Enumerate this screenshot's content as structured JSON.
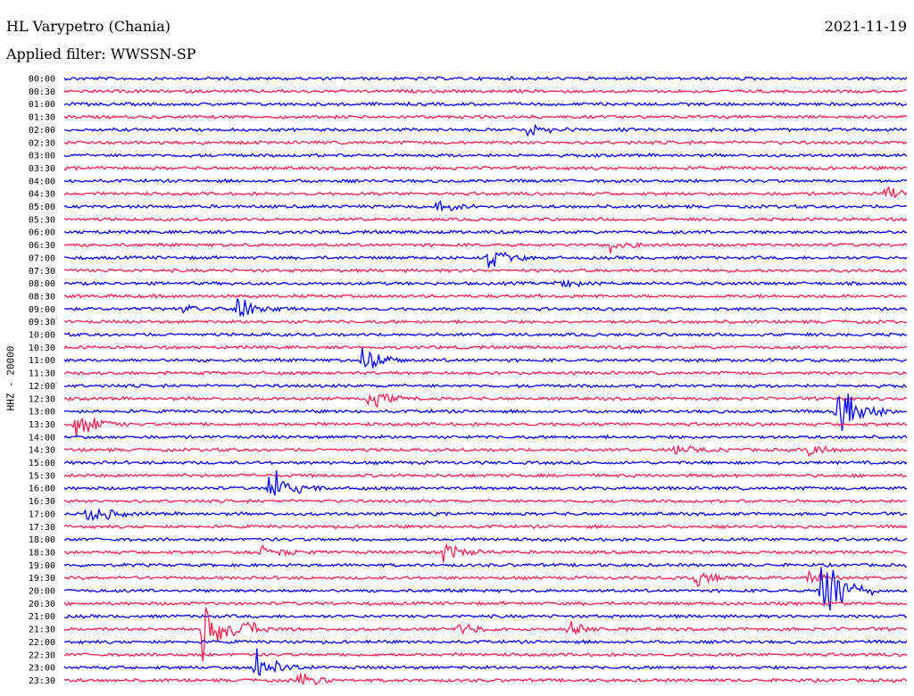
{
  "header": {
    "station": "HL Varypetro (Chania)",
    "date": "2021-11-19",
    "filter": "Applied filter: WWSSN-SP"
  },
  "colors": {
    "even": "#0000ff",
    "odd": "#ff1f4b"
  },
  "chart_data": {
    "type": "line",
    "title": "HL Varypetro (Chania)",
    "ylabel": "HHZ - 20000",
    "categories": [
      "00:00",
      "00:30",
      "01:00",
      "01:30",
      "02:00",
      "02:30",
      "03:00",
      "03:30",
      "04:00",
      "04:30",
      "05:00",
      "05:30",
      "06:00",
      "06:30",
      "07:00",
      "07:30",
      "08:00",
      "08:30",
      "09:00",
      "09:30",
      "10:00",
      "10:30",
      "11:00",
      "11:30",
      "12:00",
      "12:30",
      "13:00",
      "13:30",
      "14:00",
      "14:30",
      "15:00",
      "15:30",
      "16:00",
      "16:30",
      "17:00",
      "17:30",
      "18:00",
      "18:30",
      "19:00",
      "19:30",
      "20:00",
      "20:30",
      "21:00",
      "21:30",
      "22:00",
      "22:30",
      "23:00",
      "23:30"
    ],
    "events": [
      {
        "row": 4,
        "minute": 16.5,
        "amp": 0.45
      },
      {
        "row": 9,
        "minute": 29.2,
        "amp": 0.5
      },
      {
        "row": 10,
        "minute": 13.3,
        "amp": 0.4
      },
      {
        "row": 13,
        "minute": 19.4,
        "amp": 0.4
      },
      {
        "row": 14,
        "minute": 15.1,
        "amp": 0.7
      },
      {
        "row": 16,
        "minute": 17.5,
        "amp": 0.35
      },
      {
        "row": 18,
        "minute": 6.1,
        "amp": 1.0
      },
      {
        "row": 18,
        "minute": 4.2,
        "amp": 0.35
      },
      {
        "row": 22,
        "minute": 10.6,
        "amp": 1.2
      },
      {
        "row": 25,
        "minute": 10.8,
        "amp": 0.7
      },
      {
        "row": 26,
        "minute": 27.5,
        "amp": 3.0
      },
      {
        "row": 27,
        "minute": 0.4,
        "amp": 1.2
      },
      {
        "row": 29,
        "minute": 21.7,
        "amp": 0.35
      },
      {
        "row": 29,
        "minute": 26.5,
        "amp": 0.4
      },
      {
        "row": 32,
        "minute": 7.2,
        "amp": 1.8
      },
      {
        "row": 34,
        "minute": 0.8,
        "amp": 0.9
      },
      {
        "row": 37,
        "minute": 7.0,
        "amp": 0.5
      },
      {
        "row": 37,
        "minute": 13.5,
        "amp": 0.7
      },
      {
        "row": 39,
        "minute": 22.5,
        "amp": 0.45
      },
      {
        "row": 39,
        "minute": 26.5,
        "amp": 0.4
      },
      {
        "row": 40,
        "minute": 26.9,
        "amp": 4.2
      },
      {
        "row": 43,
        "minute": 4.9,
        "amp": 2.0
      },
      {
        "row": 43,
        "minute": 6.1,
        "amp": 0.7
      },
      {
        "row": 43,
        "minute": 14.0,
        "amp": 0.4
      },
      {
        "row": 43,
        "minute": 17.9,
        "amp": 0.5
      },
      {
        "row": 46,
        "minute": 6.8,
        "amp": 1.4
      },
      {
        "row": 47,
        "minute": 8.3,
        "amp": 0.6
      }
    ]
  }
}
